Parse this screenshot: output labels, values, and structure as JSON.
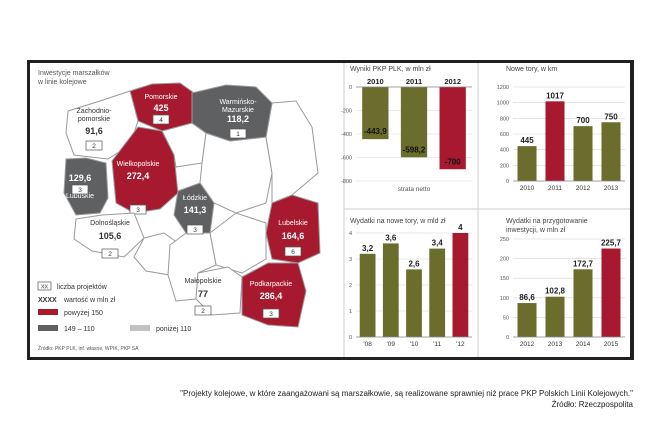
{
  "colors": {
    "red": "#a6192e",
    "dark_gray": "#5f6062",
    "light_gray": "#c2c2c2",
    "white": "#ffffff",
    "olive": "#6b6d2c",
    "text": "#333333"
  },
  "map": {
    "title_line1": "Inwestycje marszałków",
    "title_line2": "w linie kolejowe",
    "regions": [
      {
        "name": "Pomorskie",
        "value": "425",
        "projects": "4",
        "category": "above_150",
        "lines": [
          "Pomorskie"
        ]
      },
      {
        "name": "Warmińsko-Mazurskie",
        "value": "118,2",
        "projects": "1",
        "category": "149_110",
        "lines": [
          "Warmińsko-",
          "Mazurskie"
        ]
      },
      {
        "name": "Zachodniopomorskie",
        "value": "91,6",
        "projects": "2",
        "category": "below_110",
        "lines": [
          "Zachodnio-",
          "pomorskie"
        ]
      },
      {
        "name": "Lubuskie",
        "value": "129,6",
        "projects": "3",
        "category": "149_110",
        "lines": [
          "Lubuskie"
        ]
      },
      {
        "name": "Wielkopolskie",
        "value": "272,4",
        "projects": "3",
        "category": "above_150",
        "lines": [
          "Wielkopolskie"
        ]
      },
      {
        "name": "Łódzkie",
        "value": "141,3",
        "projects": "3",
        "category": "149_110",
        "lines": [
          "Łódzkie"
        ]
      },
      {
        "name": "Dolnośląskie",
        "value": "105,6",
        "projects": "2",
        "category": "below_110",
        "lines": [
          "Dolnośląskie"
        ]
      },
      {
        "name": "Lubelskie",
        "value": "164,6",
        "projects": "6",
        "category": "above_150",
        "lines": [
          "Lubelskie"
        ]
      },
      {
        "name": "Małopolskie",
        "value": "77",
        "projects": "2",
        "category": "below_110",
        "lines": [
          "Małopolskie"
        ]
      },
      {
        "name": "Podkarpackie",
        "value": "286,4",
        "projects": "3",
        "category": "above_150",
        "lines": [
          "Podkarpackie"
        ]
      }
    ],
    "legend": {
      "projects_sample": "XX",
      "projects_label": "liczba projektów",
      "value_sample": "XXXX",
      "value_label": "wartość w mln zł",
      "above_label": "powyżej 150",
      "mid_label": "149 – 110",
      "below_label": "poniżej 110"
    },
    "source": "Źródło: PKP PLK, inf. własne, WPIK, PKP SA"
  },
  "chart_data": [
    {
      "type": "bar",
      "title": "Wyniki PKP PLK, w mln zł",
      "categories": [
        "2010",
        "2011",
        "2012"
      ],
      "values": [
        -443.9,
        -598.2,
        -700
      ],
      "value_labels": [
        "-443,9",
        "-598,2",
        "-700"
      ],
      "bar_colors": [
        "#6b6d2c",
        "#6b6d2c",
        "#a6192e"
      ],
      "yticks": [
        "0",
        "-200",
        "-400",
        "-600",
        "-800"
      ],
      "ylim": [
        -800,
        0
      ],
      "xlabel": "strata netto"
    },
    {
      "type": "bar",
      "title": "Nowe tory, w km",
      "categories": [
        "2010",
        "2011",
        "2012",
        "2013"
      ],
      "values": [
        445,
        1017,
        700,
        750
      ],
      "value_labels": [
        "445",
        "1017",
        "700",
        "750"
      ],
      "bar_colors": [
        "#6b6d2c",
        "#a6192e",
        "#6b6d2c",
        "#6b6d2c"
      ],
      "yticks": [
        "1200",
        "1000",
        "800",
        "600",
        "400",
        "200",
        "0"
      ],
      "ylim": [
        0,
        1200
      ]
    },
    {
      "type": "bar",
      "title": "Wydatki na nowe tory, w mld zł",
      "categories": [
        "'08",
        "'09",
        "'10",
        "'11",
        "'12"
      ],
      "values": [
        3.2,
        3.6,
        2.6,
        3.4,
        4
      ],
      "value_labels": [
        "3,2",
        "3,6",
        "2,6",
        "3,4",
        "4"
      ],
      "bar_colors": [
        "#6b6d2c",
        "#6b6d2c",
        "#6b6d2c",
        "#6b6d2c",
        "#a6192e"
      ],
      "yticks": [
        "4",
        "3",
        "2",
        "1",
        "0"
      ],
      "ylim": [
        0,
        4
      ]
    },
    {
      "type": "bar",
      "title": "Wydatki na przygotowanie inwestycji, w mln zł",
      "title_lines": [
        "Wydatki na przygotowanie",
        "inwestycji, w mln zł"
      ],
      "categories": [
        "2012",
        "2013",
        "2014",
        "2015"
      ],
      "values": [
        86.6,
        102.8,
        172.7,
        225.7
      ],
      "value_labels": [
        "86,6",
        "102,8",
        "172,7",
        "225,7"
      ],
      "bar_colors": [
        "#6b6d2c",
        "#6b6d2c",
        "#6b6d2c",
        "#a6192e"
      ],
      "yticks": [
        "250",
        "200",
        "150",
        "100",
        "50",
        "0"
      ],
      "ylim": [
        0,
        250
      ]
    }
  ],
  "caption": {
    "line1": "\"Projekty kolejowe, w które zaangażowani są marszałkowie, są realizowane sprawniej niż prace PKP Polskich Linii Kolejowych.\"",
    "line2": "Źródło: Rzeczpospolita"
  }
}
